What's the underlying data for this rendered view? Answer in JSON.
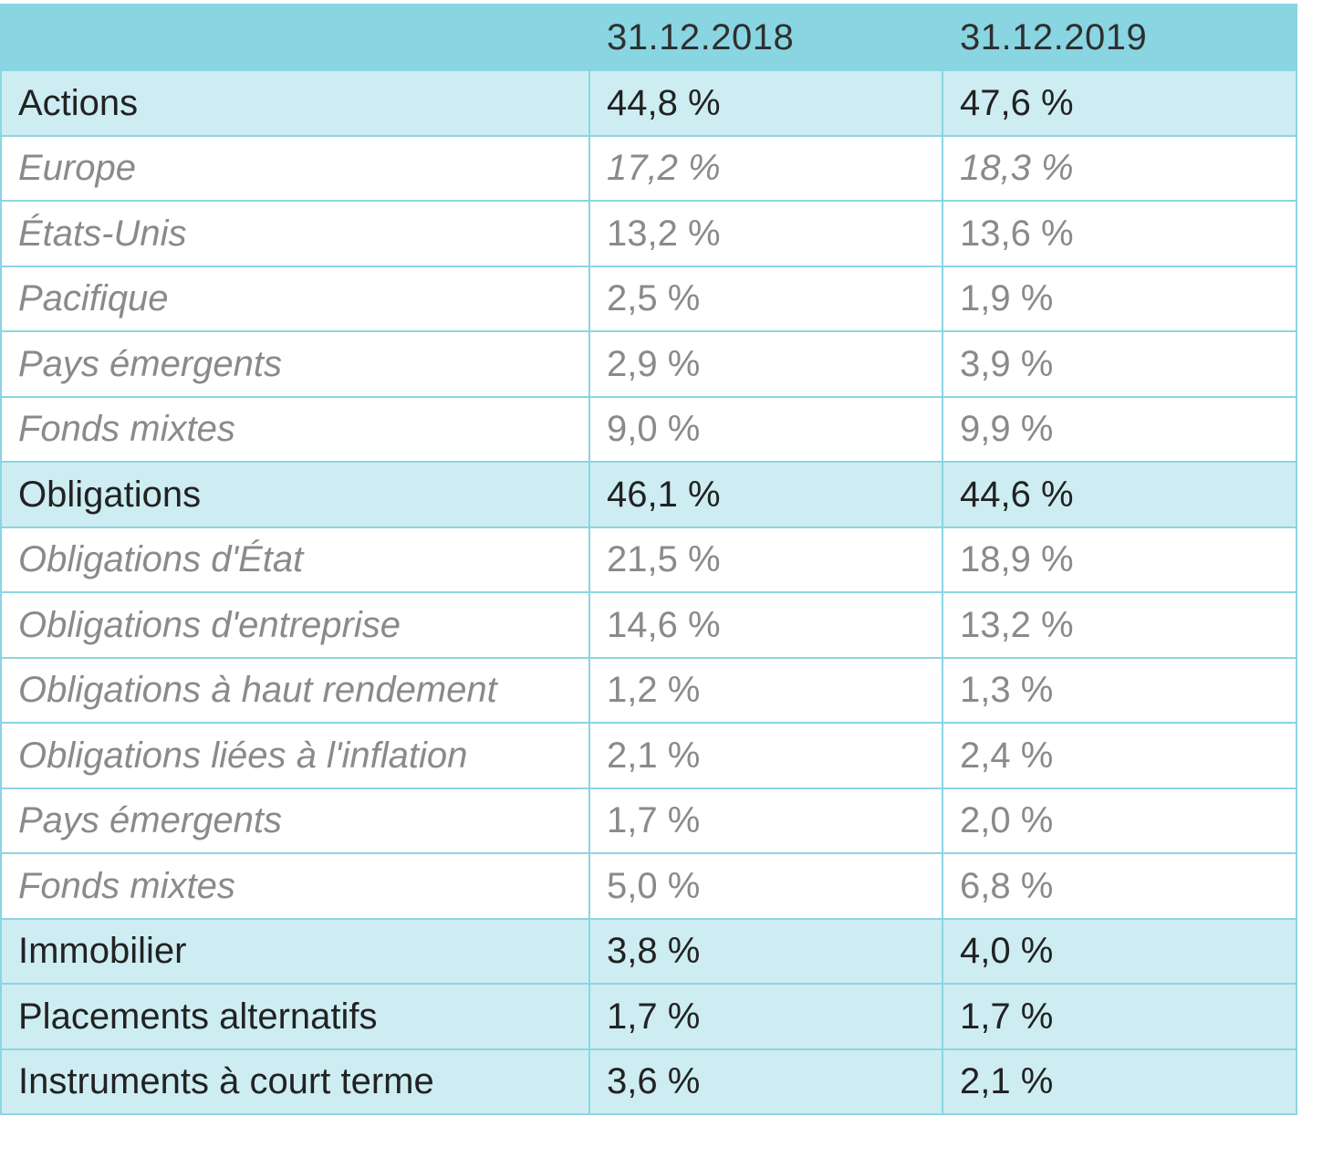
{
  "table": {
    "headers": [
      "",
      "31.12.2018",
      "31.12.2019"
    ],
    "rows": [
      {
        "type": "main",
        "label": "Actions",
        "v2018": "44,8 %",
        "v2019": "47,6 %"
      },
      {
        "type": "sub",
        "label": "Europe",
        "v2018": "17,2 %",
        "v2019": "18,3 %",
        "italic_values": true
      },
      {
        "type": "sub",
        "label": "États-Unis",
        "v2018": "13,2 %",
        "v2019": "13,6 %"
      },
      {
        "type": "sub",
        "label": "Pacifique",
        "v2018": "2,5 %",
        "v2019": "1,9 %"
      },
      {
        "type": "sub",
        "label": "Pays émergents",
        "v2018": "2,9 %",
        "v2019": "3,9 %"
      },
      {
        "type": "sub",
        "label": "Fonds mixtes",
        "v2018": "9,0 %",
        "v2019": "9,9 %"
      },
      {
        "type": "main",
        "label": "Obligations",
        "v2018": "46,1 %",
        "v2019": "44,6 %"
      },
      {
        "type": "sub",
        "label": "Obligations d'État",
        "v2018": "21,5 %",
        "v2019": "18,9 %"
      },
      {
        "type": "sub",
        "label": "Obligations d'entreprise",
        "v2018": "14,6 %",
        "v2019": "13,2 %"
      },
      {
        "type": "sub",
        "label": "Obligations à haut rendement",
        "v2018": "1,2 %",
        "v2019": "1,3 %"
      },
      {
        "type": "sub",
        "label": "Obligations liées à l'inflation",
        "v2018": "2,1 %",
        "v2019": "2,4 %"
      },
      {
        "type": "sub",
        "label": "Pays émergents",
        "v2018": "1,7 %",
        "v2019": "2,0 %"
      },
      {
        "type": "sub",
        "label": "Fonds mixtes",
        "v2018": "5,0 %",
        "v2019": "6,8 %"
      },
      {
        "type": "main",
        "label": "Immobilier",
        "v2018": "3,8 %",
        "v2019": "4,0 %"
      },
      {
        "type": "main",
        "label": "Placements alternatifs",
        "v2018": "1,7 %",
        "v2019": "1,7 %"
      },
      {
        "type": "main",
        "label": "Instruments à court terme",
        "v2018": "3,6 %",
        "v2019": "2,1 %"
      }
    ]
  },
  "colors": {
    "header_bg": "#89d5e2",
    "main_row_bg": "#cdedf3",
    "sub_row_bg": "#ffffff",
    "border": "#8bd5e2",
    "main_text": "#222222",
    "sub_text": "#8a8a8a"
  }
}
